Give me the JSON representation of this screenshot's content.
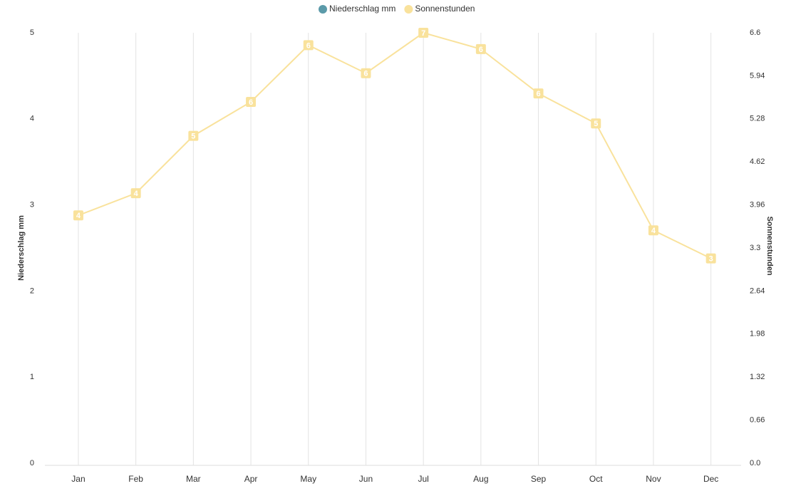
{
  "chart_data": {
    "type": "line",
    "categories": [
      "Jan",
      "Feb",
      "Mar",
      "Apr",
      "May",
      "Jun",
      "Jul",
      "Aug",
      "Sep",
      "Oct",
      "Nov",
      "Dec"
    ],
    "series": [
      {
        "name": "Niederschlag mm",
        "color": "#5b9aa9",
        "values": [
          null,
          null,
          null,
          null,
          null,
          null,
          null,
          null,
          null,
          null,
          null,
          null
        ]
      },
      {
        "name": "Sonnenstunden",
        "color": "#f9e29c",
        "axis": "y2",
        "values": [
          3.8,
          4.14,
          5.02,
          5.54,
          6.41,
          5.98,
          6.6,
          6.35,
          5.67,
          5.21,
          3.57,
          3.14
        ],
        "value_labels": [
          "4",
          "4",
          "5",
          "6",
          "6",
          "6",
          "7",
          "6",
          "6",
          "5",
          "4",
          "3"
        ]
      }
    ],
    "y_label": "Niederschlag mm",
    "y2_label": "Sonnenstunden",
    "ylim": [
      0,
      5
    ],
    "yticks": [
      0,
      1,
      2,
      3,
      4,
      5
    ],
    "y2lim": [
      0,
      6.6
    ],
    "y2ticks": [
      {
        "value": 0,
        "label": "0.0"
      },
      0.66,
      1.32,
      1.98,
      2.64,
      3.3,
      3.96,
      4.62,
      5.28,
      5.94,
      6.6
    ],
    "x_grid": true,
    "legend": "top"
  }
}
